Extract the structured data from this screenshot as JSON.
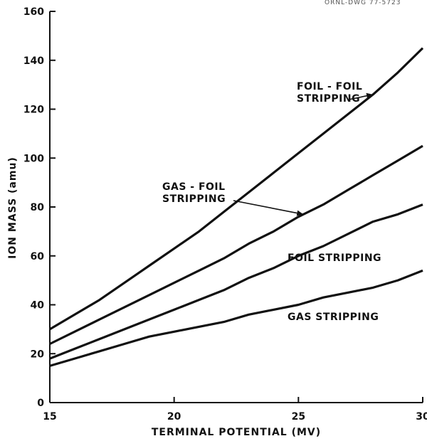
{
  "corner_note": "ORNL-DWG 77-5723",
  "chart_data": {
    "type": "line",
    "title": "",
    "xlabel": "TERMINAL POTENTIAL (MV)",
    "ylabel": "ION MASS (amu)",
    "xlim": [
      15,
      30
    ],
    "ylim": [
      0,
      160
    ],
    "x_ticks": [
      15,
      20,
      25,
      30
    ],
    "x_tick_labels": [
      "15",
      "20",
      "25",
      "30"
    ],
    "y_ticks": [
      0,
      20,
      40,
      60,
      80,
      100,
      120,
      140,
      160
    ],
    "y_tick_labels": [
      "0",
      "20",
      "40",
      "60",
      "80",
      "100",
      "120",
      "140",
      "160"
    ],
    "grid": false,
    "legend": "none",
    "x": [
      15,
      16,
      17,
      18,
      19,
      20,
      21,
      22,
      23,
      24,
      25,
      26,
      27,
      28,
      29,
      30
    ],
    "series": [
      {
        "name": "FOIL - FOIL STRIPPING",
        "values": [
          30,
          36,
          42,
          49,
          56,
          63,
          70,
          78,
          86,
          94,
          102,
          110,
          118,
          126,
          135,
          145
        ]
      },
      {
        "name": "GAS - FOIL STRIPPING",
        "values": [
          24,
          29,
          34,
          39,
          44,
          49,
          54,
          59,
          65,
          70,
          76,
          81,
          87,
          93,
          99,
          105
        ]
      },
      {
        "name": "FOIL STRIPPING",
        "values": [
          18,
          22,
          26,
          30,
          34,
          38,
          42,
          46,
          51,
          55,
          60,
          64,
          69,
          74,
          77,
          81
        ]
      },
      {
        "name": "GAS STRIPPING",
        "values": [
          15,
          18,
          21,
          24,
          27,
          29,
          31,
          33,
          36,
          38,
          40,
          43,
          45,
          47,
          50,
          54
        ]
      }
    ],
    "annotations": [
      {
        "text_lines": [
          "FOIL - FOIL",
          "STRIPPING"
        ],
        "series": 0,
        "arrow_to_x": 28
      },
      {
        "text_lines": [
          "GAS - FOIL",
          "STRIPPING"
        ],
        "series": 1,
        "arrow_to_x": 25.2
      },
      {
        "text_lines": [
          "FOIL STRIPPING"
        ],
        "series": 2
      },
      {
        "text_lines": [
          "GAS STRIPPING"
        ],
        "series": 3
      }
    ]
  }
}
